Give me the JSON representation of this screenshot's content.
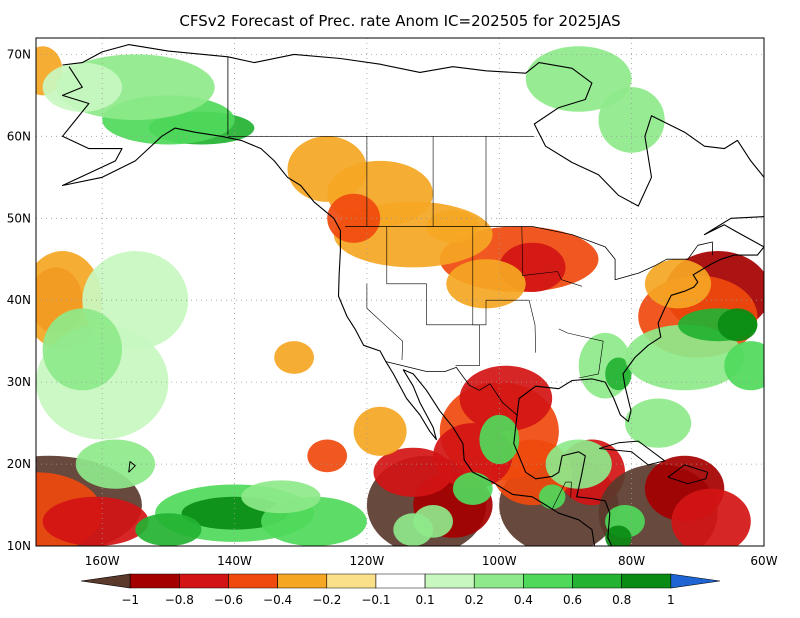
{
  "title": "CFSv2 Forecast of Prec. rate Anom IC=202505 for 2025JAS",
  "map": {
    "projection": "cylindrical-equidistant",
    "lon_range": [
      -170,
      -60
    ],
    "lat_range": [
      10,
      72
    ],
    "lat_ticks": [
      {
        "value": 10,
        "label": "10N"
      },
      {
        "value": 20,
        "label": "20N"
      },
      {
        "value": 30,
        "label": "30N"
      },
      {
        "value": 40,
        "label": "40N"
      },
      {
        "value": 50,
        "label": "50N"
      },
      {
        "value": 60,
        "label": "60N"
      },
      {
        "value": 70,
        "label": "70N"
      }
    ],
    "lon_ticks": [
      {
        "value": -160,
        "label": "160W"
      },
      {
        "value": -140,
        "label": "140W"
      },
      {
        "value": -120,
        "label": "120W"
      },
      {
        "value": -100,
        "label": "100W"
      },
      {
        "value": -80,
        "label": "80W"
      },
      {
        "value": -60,
        "label": "60W"
      }
    ],
    "grid": "dotted",
    "coastline_color": "#000000"
  },
  "colorbar": {
    "orientation": "horizontal",
    "position": "bottom",
    "colors": [
      "#5b3a2c",
      "#a50000",
      "#d21414",
      "#f04a0e",
      "#f5a623",
      "#fbe08a",
      "#ffffff",
      "#c8f7c0",
      "#8ee98a",
      "#4fd95a",
      "#23b232",
      "#0a8c14",
      "#1e64d2"
    ],
    "labels": [
      "−1",
      "−0.8",
      "−0.6",
      "−0.4",
      "−0.2",
      "−0.1",
      "0.1",
      "0.2",
      "0.4",
      "0.6",
      "0.8",
      "1"
    ]
  },
  "chart_data": {
    "type": "heatmap",
    "variable": "Prec. rate Anom",
    "x_range": [
      -170,
      -60
    ],
    "y_range": [
      10,
      72
    ],
    "levels": [
      -1,
      -0.8,
      -0.6,
      -0.4,
      -0.2,
      -0.1,
      0.1,
      0.2,
      0.4,
      0.6,
      0.8,
      1
    ],
    "anomaly_regions": [
      {
        "lon": -140,
        "lat": 14,
        "value": 1.0
      },
      {
        "lon": -127,
        "lat": 14,
        "value": 0.6
      },
      {
        "lon": -160,
        "lat": 12,
        "value": -0.7
      },
      {
        "lon": -109,
        "lat": 15,
        "value": -1.0
      },
      {
        "lon": -90,
        "lat": 15,
        "value": -1.0
      },
      {
        "lon": -76,
        "lat": 14,
        "value": -1.0
      },
      {
        "lon": -66,
        "lat": 38,
        "value": 1.0
      },
      {
        "lon": -70,
        "lat": 40,
        "value": -0.9
      },
      {
        "lon": -97,
        "lat": 43,
        "value": -0.5
      },
      {
        "lon": -115,
        "lat": 48,
        "value": -0.3
      },
      {
        "lon": -167,
        "lat": 40,
        "value": -0.6
      },
      {
        "lon": -145,
        "lat": 61,
        "value": 0.8
      },
      {
        "lon": -84,
        "lat": 32,
        "value": 0.4
      },
      {
        "lon": -103,
        "lat": 23,
        "value": 0.6
      }
    ]
  }
}
